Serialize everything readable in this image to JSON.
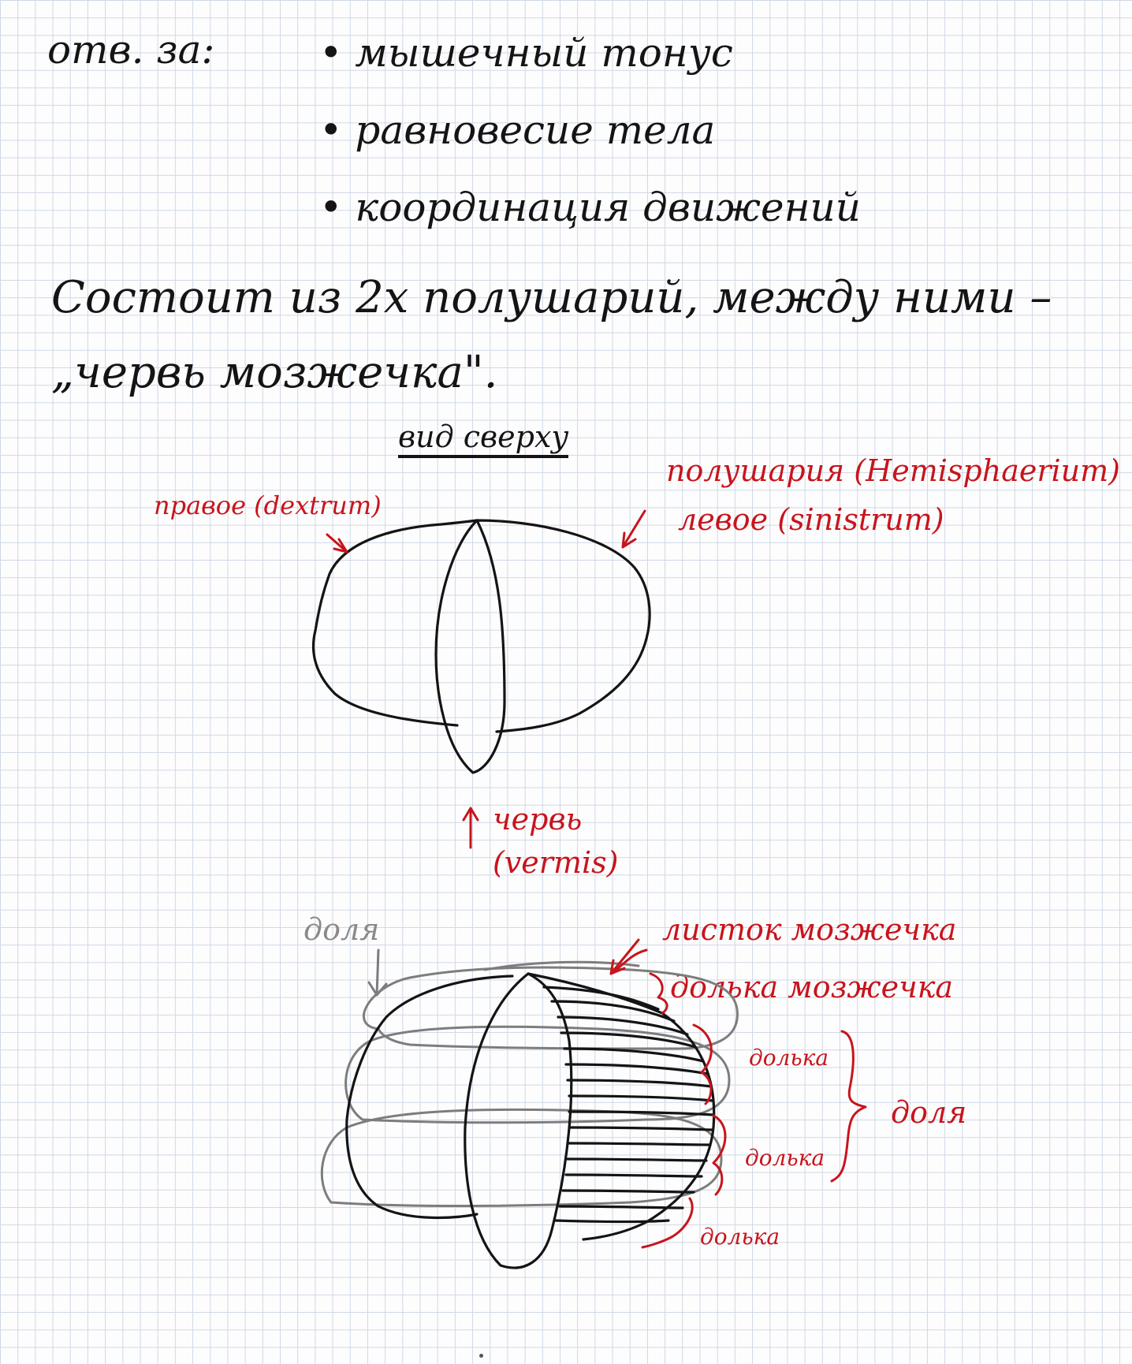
{
  "notes": {
    "responsible_label": "отв. за:",
    "functions": [
      "• мышечный тонус",
      "• равновесие тела",
      "• координация движений"
    ],
    "structure_line1": "Состоит из 2х полушарий, между ними –",
    "structure_line2": "„червь мозжечка\".",
    "view_label": "вид сверху"
  },
  "top_view": {
    "right_hemisphere": "правое (dextrum)",
    "hemisphere": "полушария (Hemisphaerium)",
    "left_hemisphere": "левое (sinistrum)",
    "vermis_ru": "червь",
    "vermis_lat": "(vermis)"
  },
  "lobes_view": {
    "lobe_gray": "доля",
    "leaf": "листок мозжечка",
    "lobule": "долька мозжечка",
    "lobule_1": "долька",
    "lobule_2": "долька",
    "lobule_3": "долька",
    "lobe_red": "доля"
  },
  "colors": {
    "ink": "#141414",
    "annotation_red": "#c8141c",
    "annotation_gray": "#8a8a8a",
    "grid": "#cfd8e4"
  }
}
